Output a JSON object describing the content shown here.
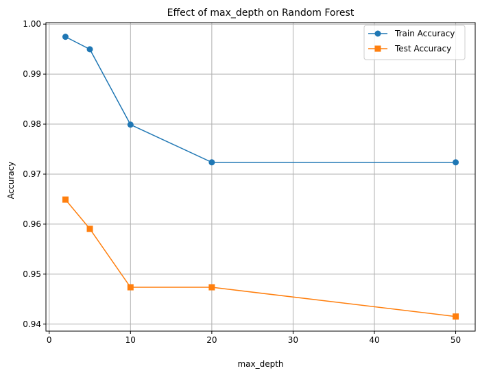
{
  "chart_data": {
    "type": "line",
    "title": "Effect of max_depth on Random Forest",
    "xlabel": "max_depth",
    "ylabel": "Accuracy",
    "x": [
      2,
      5,
      10,
      20,
      50
    ],
    "series": [
      {
        "name": "Train Accuracy",
        "values": [
          0.99747,
          0.99497,
          0.9799,
          0.97236,
          0.97236
        ],
        "color": "#1f77b4",
        "marker": "circle"
      },
      {
        "name": "Test Accuracy",
        "values": [
          0.96491,
          0.95906,
          0.94737,
          0.94737,
          0.94152
        ],
        "color": "#ff7f0e",
        "marker": "square"
      }
    ],
    "xlim": [
      -0.4,
      52.4
    ],
    "ylim": [
      0.9386,
      1.0003
    ],
    "xticks": [
      0,
      10,
      20,
      30,
      40,
      50
    ],
    "xtick_labels": [
      "0",
      "10",
      "20",
      "30",
      "40",
      "50"
    ],
    "yticks": [
      0.94,
      0.95,
      0.96,
      0.97,
      0.98,
      0.99,
      1.0
    ],
    "ytick_labels": [
      "0.94",
      "0.95",
      "0.96",
      "0.97",
      "0.98",
      "0.99",
      "1.00"
    ],
    "grid": true,
    "legend_position": "top-right"
  }
}
